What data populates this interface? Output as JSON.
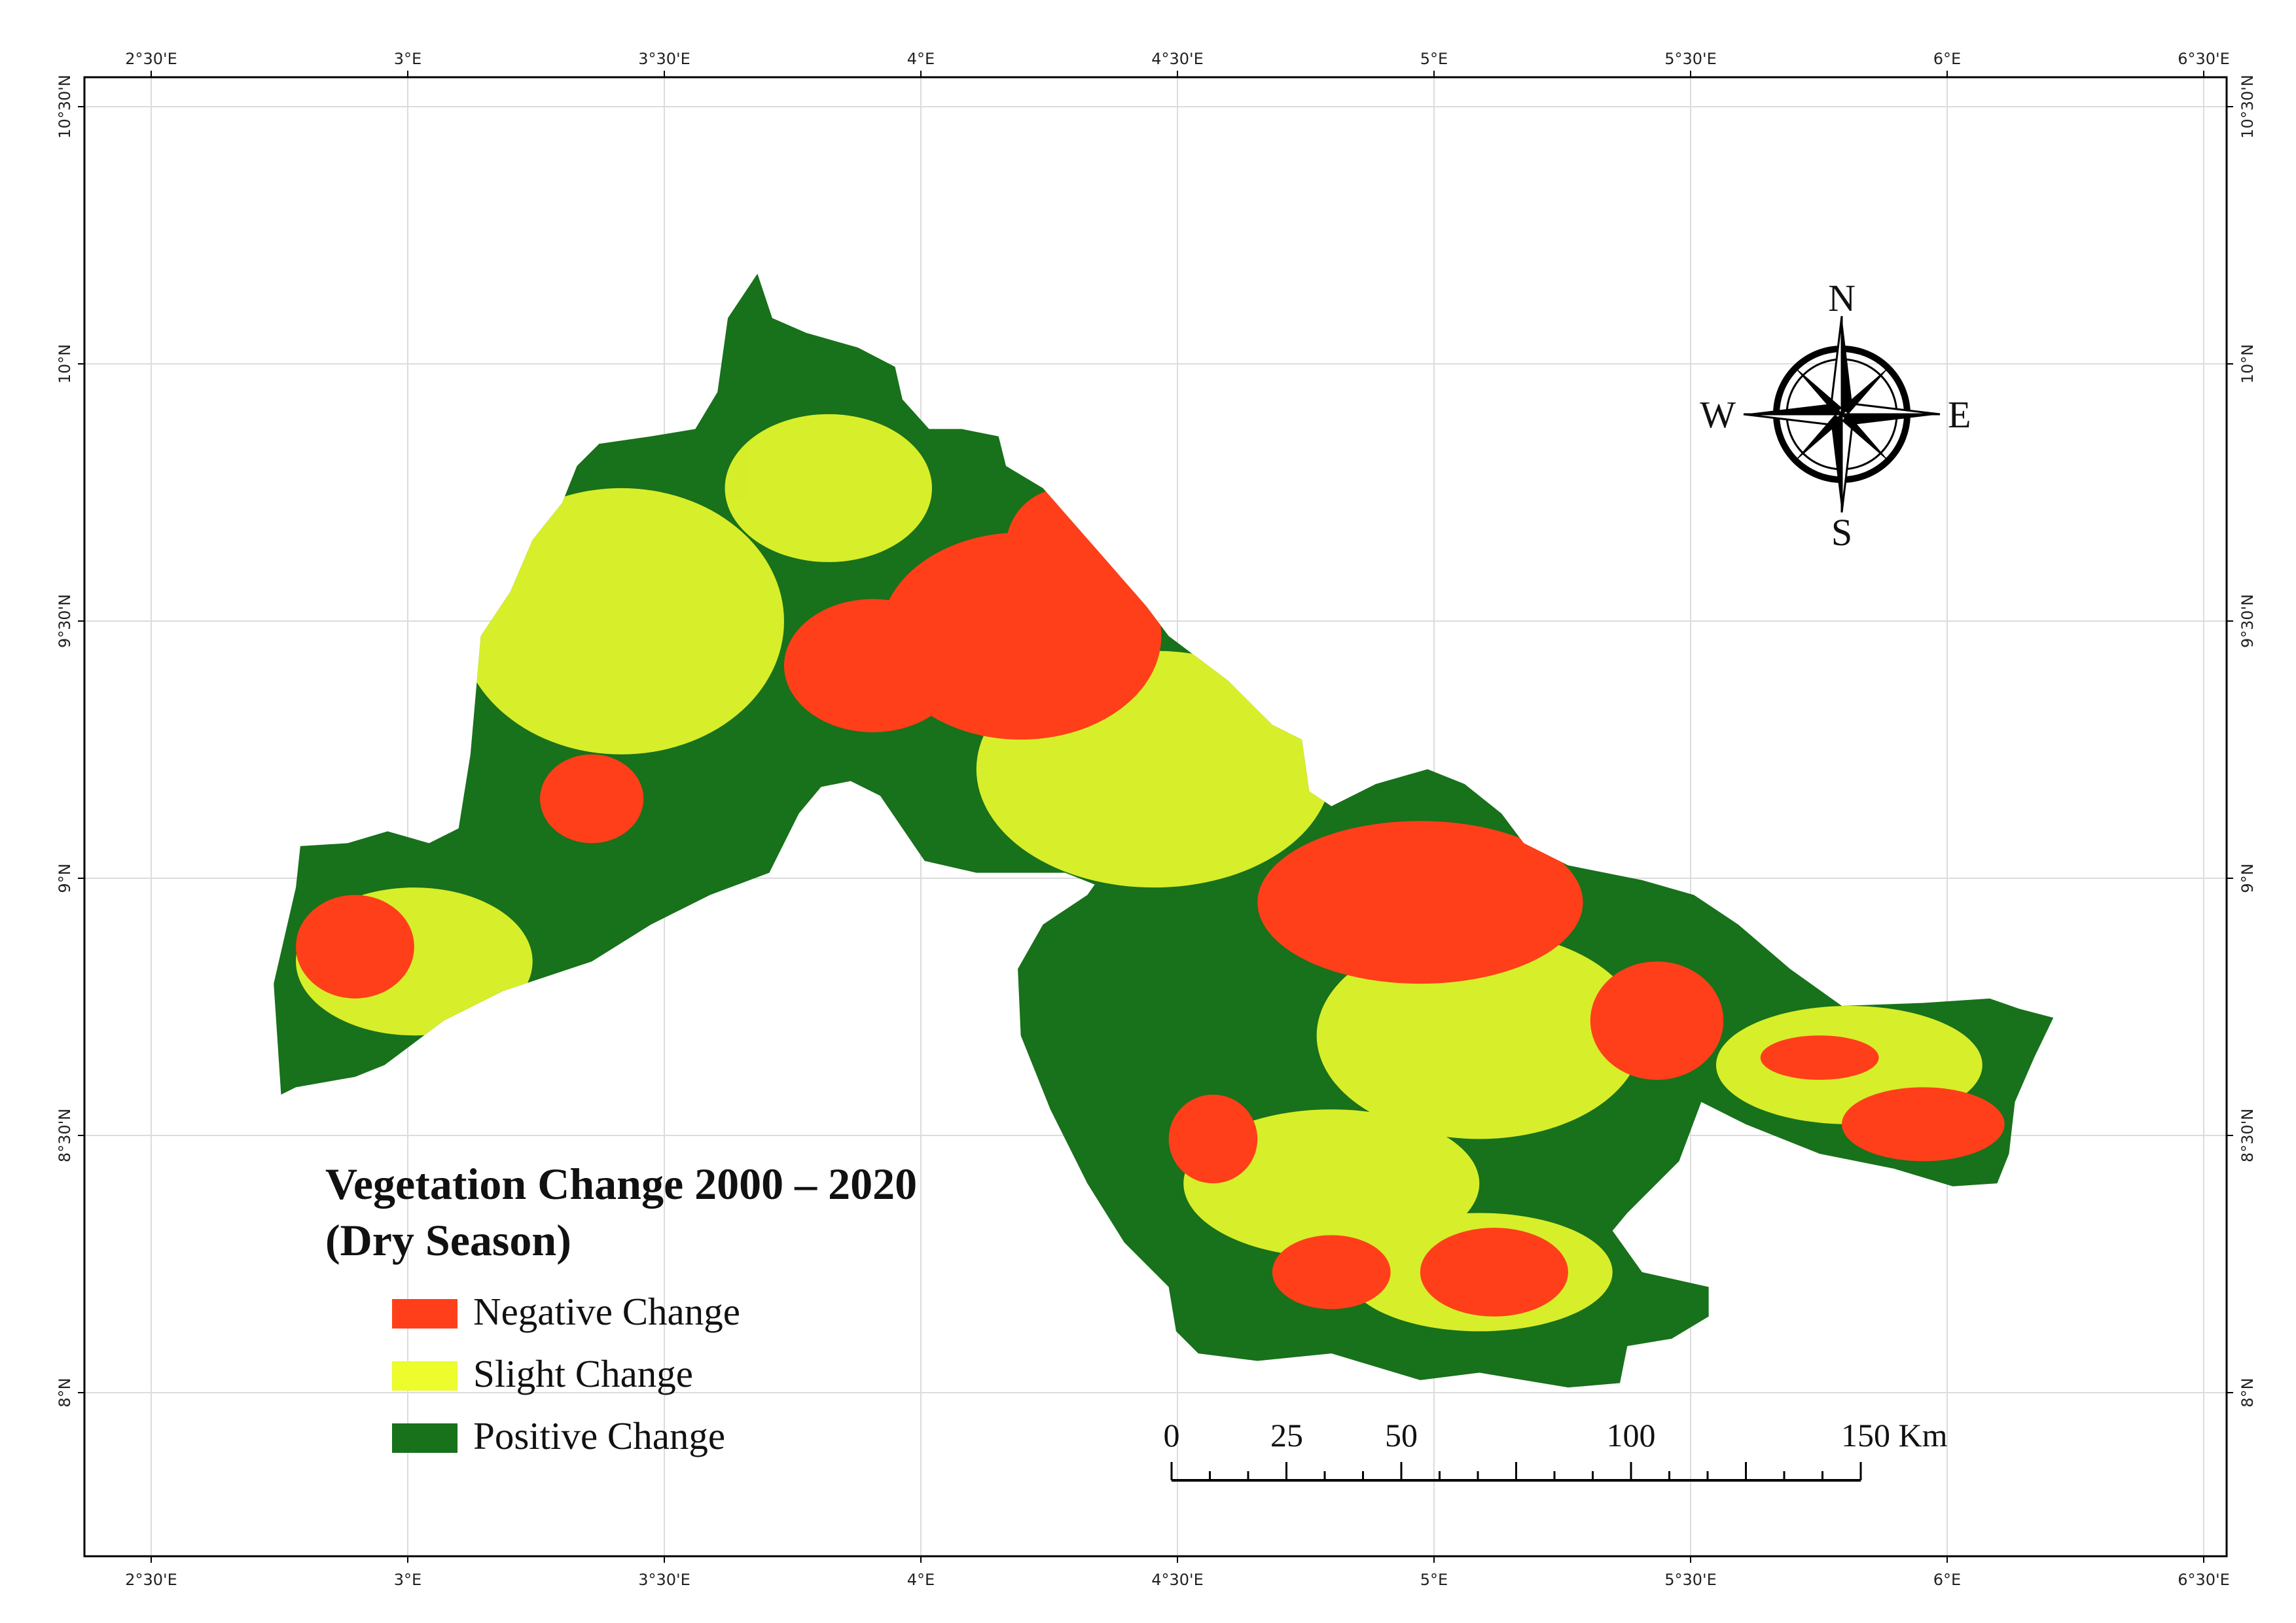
{
  "map": {
    "title": [
      "Vegetation Change 2000 – 2020",
      "(Dry Season)"
    ]
  },
  "legend": {
    "items": [
      {
        "label": "Negative Change",
        "color": "#ff3f1a"
      },
      {
        "label": "Slight Change",
        "color": "#ecfc2c"
      },
      {
        "label": "Positive Change",
        "color": "#18711b"
      }
    ]
  },
  "graticule": {
    "lon_labels": [
      "2°30'E",
      "3°E",
      "3°30'E",
      "4°E",
      "4°30'E",
      "5°E",
      "5°30'E",
      "6°E",
      "6°30'E"
    ],
    "lat_labels": [
      "10°30'N",
      "10°N",
      "9°30'N",
      "9°N",
      "8°30'N",
      "8°N"
    ]
  },
  "compass": {
    "north": "N",
    "south": "S",
    "east": "E",
    "west": "W"
  },
  "scale_bar": {
    "labels": [
      "0",
      "25",
      "50",
      "100",
      "150 Km"
    ]
  }
}
